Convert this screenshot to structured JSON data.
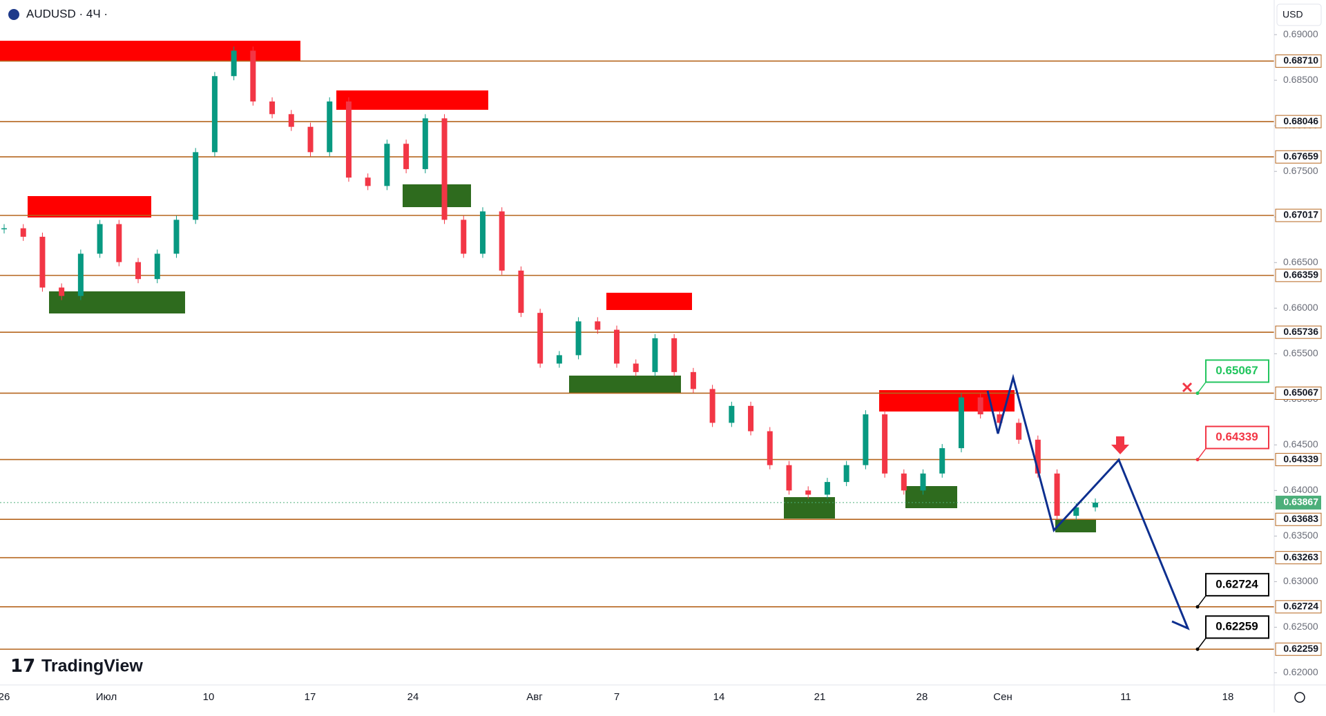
{
  "header": {
    "symbol": "AUDUSD · 4Ч ·",
    "currency": "USD",
    "logo": "TradingView"
  },
  "chart_data": {
    "type": "candlestick",
    "close": [
      0.66876,
      0.66783,
      0.66226,
      0.66134,
      0.66597,
      0.66922,
      0.66505,
      0.66319,
      0.66597,
      0.66969,
      0.67711,
      0.68545,
      0.68824,
      0.68267,
      0.68128,
      0.67989,
      0.67711,
      0.68267,
      0.67432,
      0.6734,
      0.67803,
      0.67525,
      0.68082,
      0.66969,
      0.66597,
      0.67061,
      0.66412,
      0.65948,
      0.65392,
      0.65484,
      0.65855,
      0.65763,
      0.65392,
      0.65299,
      0.6567,
      0.65299,
      0.65113,
      0.64742,
      0.64928,
      0.6465,
      0.64278,
      0.64,
      0.63954,
      0.64093,
      0.64278,
      0.64835,
      0.64186,
      0.64,
      0.64186,
      0.64464,
      0.65021,
      0.64835,
      0.64742,
      0.64557,
      0.64186,
      0.63722,
      0.63815,
      0.63867
    ],
    "ylim": [
      0.61867,
      0.6938
    ],
    "yticks": [
      {
        "value": 0.62,
        "label": "0.62000"
      },
      {
        "value": 0.625,
        "label": "0.62500"
      },
      {
        "value": 0.63,
        "label": "0.63000"
      },
      {
        "value": 0.635,
        "label": "0.63500"
      },
      {
        "value": 0.64,
        "label": "0.64000"
      },
      {
        "value": 0.645,
        "label": "0.64500"
      },
      {
        "value": 0.65,
        "label": "0.65000"
      },
      {
        "value": 0.655,
        "label": "0.65500"
      },
      {
        "value": 0.66,
        "label": "0.66000"
      },
      {
        "value": 0.665,
        "label": "0.66500"
      },
      {
        "value": 0.67,
        "label": "0.67000"
      },
      {
        "value": 0.675,
        "label": "0.67500"
      },
      {
        "value": 0.68,
        "label": "0.68000"
      },
      {
        "value": 0.685,
        "label": "0.68500"
      },
      {
        "value": 0.69,
        "label": "0.69000"
      }
    ],
    "x_labels": [
      "26",
      "Июл",
      "10",
      "17",
      "24",
      "Авг",
      "7",
      "14",
      "21",
      "28",
      "Сен",
      "11",
      "18"
    ],
    "levels": [
      {
        "value": 0.6871,
        "label": "0.68710"
      },
      {
        "value": 0.68046,
        "label": "0.68046"
      },
      {
        "value": 0.67659,
        "label": "0.67659"
      },
      {
        "value": 0.67017,
        "label": "0.67017"
      },
      {
        "value": 0.66359,
        "label": "0.66359"
      },
      {
        "value": 0.65736,
        "label": "0.65736"
      },
      {
        "value": 0.65067,
        "label": "0.65067"
      },
      {
        "value": 0.64339,
        "label": "0.64339"
      },
      {
        "value": 0.63683,
        "label": "0.63683"
      },
      {
        "value": 0.63263,
        "label": "0.63263"
      },
      {
        "value": 0.62724,
        "label": "0.62724"
      },
      {
        "value": 0.62259,
        "label": "0.62259"
      }
    ],
    "last_price": {
      "value": 0.63867,
      "label": "0.63867"
    },
    "targets": [
      {
        "value": 0.65067,
        "label": "0.65067",
        "color": "#22c55e"
      },
      {
        "value": 0.64339,
        "label": "0.64339",
        "color": "#f23645"
      },
      {
        "value": 0.62724,
        "label": "0.62724",
        "color": "#000000"
      },
      {
        "value": 0.62259,
        "label": "0.62259",
        "color": "#000000"
      }
    ],
    "colors": {
      "up": "#089981",
      "down": "#f23645",
      "level": "#b5651d",
      "last": "#4caf7a"
    }
  }
}
